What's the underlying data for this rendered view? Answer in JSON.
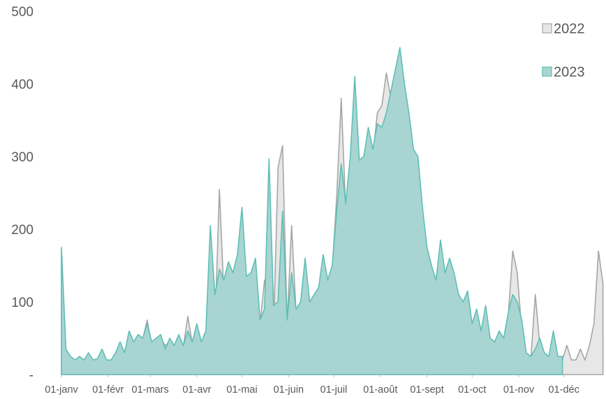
{
  "chart_data": {
    "type": "area",
    "x": [
      0,
      3,
      6,
      9,
      12,
      15,
      18,
      21,
      24,
      27,
      30,
      33,
      36,
      39,
      42,
      45,
      48,
      51,
      54,
      57,
      60,
      63,
      66,
      69,
      72,
      75,
      78,
      81,
      84,
      87,
      90,
      93,
      96,
      99,
      102,
      105,
      108,
      111,
      114,
      117,
      120,
      123,
      126,
      129,
      132,
      135,
      138,
      141,
      144,
      147,
      150,
      153,
      156,
      159,
      162,
      165,
      168,
      171,
      174,
      177,
      180,
      183,
      186,
      189,
      192,
      195,
      198,
      201,
      204,
      207,
      210,
      213,
      216,
      219,
      222,
      225,
      228,
      231,
      234,
      237,
      240,
      243,
      246,
      249,
      252,
      255,
      258,
      261,
      264,
      267,
      270,
      273,
      276,
      279,
      282,
      285,
      288,
      291,
      294,
      297,
      300,
      303,
      306,
      309,
      312,
      315,
      318,
      321,
      324,
      327,
      330,
      333,
      336,
      339,
      342,
      345,
      348,
      351,
      354,
      357,
      360
    ],
    "xlim": [
      0,
      362
    ],
    "xticks": [
      {
        "value": 0,
        "label": "01-janv"
      },
      {
        "value": 31,
        "label": "01-févr"
      },
      {
        "value": 59,
        "label": "01-mars"
      },
      {
        "value": 90,
        "label": "01-avr"
      },
      {
        "value": 120,
        "label": "01-mai"
      },
      {
        "value": 151,
        "label": "01-juin"
      },
      {
        "value": 181,
        "label": "01-juil"
      },
      {
        "value": 212,
        "label": "01-août"
      },
      {
        "value": 243,
        "label": "01-sept"
      },
      {
        "value": 273,
        "label": "01-oct"
      },
      {
        "value": 304,
        "label": "01-nov"
      },
      {
        "value": 334,
        "label": "01-déc"
      }
    ],
    "ylim": [
      0,
      500
    ],
    "yticks": [
      {
        "value": 0,
        "label": "-"
      },
      100,
      200,
      300,
      400,
      500
    ],
    "legend": "upper right",
    "series": [
      {
        "name": "2022",
        "color": "#a6a6a6",
        "fill": "#e7e7e7",
        "values": [
          165,
          30,
          22,
          18,
          22,
          18,
          25,
          18,
          20,
          30,
          18,
          18,
          25,
          40,
          28,
          55,
          42,
          50,
          48,
          75,
          40,
          45,
          50,
          40,
          45,
          38,
          50,
          38,
          80,
          42,
          65,
          40,
          55,
          120,
          60,
          255,
          110,
          150,
          135,
          160,
          160,
          125,
          130,
          150,
          70,
          130,
          75,
          60,
          285,
          315,
          70,
          205,
          85,
          95,
          150,
          95,
          105,
          115,
          150,
          125,
          145,
          245,
          380,
          225,
          285,
          380,
          285,
          290,
          335,
          300,
          360,
          370,
          415,
          380,
          400,
          440,
          390,
          350,
          255,
          285,
          200,
          165,
          140,
          125,
          175,
          130,
          150,
          135,
          105,
          95,
          110,
          60,
          85,
          50,
          90,
          45,
          40,
          55,
          45,
          80,
          170,
          140,
          60,
          25,
          20,
          110,
          40,
          25,
          20,
          50,
          20,
          20,
          40,
          20,
          20,
          35,
          20,
          40,
          70,
          170,
          125
        ]
      },
      {
        "name": "2023",
        "color": "#5fbfb5",
        "fill": "#a8d5d1",
        "values": [
          175,
          35,
          25,
          20,
          25,
          20,
          30,
          20,
          22,
          35,
          20,
          20,
          30,
          45,
          30,
          60,
          45,
          55,
          50,
          70,
          45,
          50,
          55,
          35,
          50,
          40,
          55,
          40,
          60,
          45,
          70,
          45,
          60,
          205,
          110,
          145,
          130,
          155,
          140,
          165,
          230,
          135,
          140,
          160,
          75,
          90,
          297,
          95,
          100,
          225,
          75,
          140,
          90,
          100,
          160,
          100,
          110,
          120,
          165,
          130,
          150,
          225,
          290,
          235,
          300,
          410,
          295,
          300,
          340,
          310,
          345,
          340,
          360,
          390,
          420,
          450,
          400,
          360,
          310,
          300,
          230,
          175,
          150,
          130,
          185,
          140,
          160,
          140,
          110,
          100,
          115,
          70,
          90,
          60,
          95,
          50,
          45,
          60,
          50,
          85,
          110,
          100,
          75,
          30,
          25,
          35,
          50,
          30,
          25,
          60,
          25,
          25,
          null,
          null,
          null,
          null,
          null,
          null,
          null,
          null,
          null
        ]
      }
    ]
  }
}
